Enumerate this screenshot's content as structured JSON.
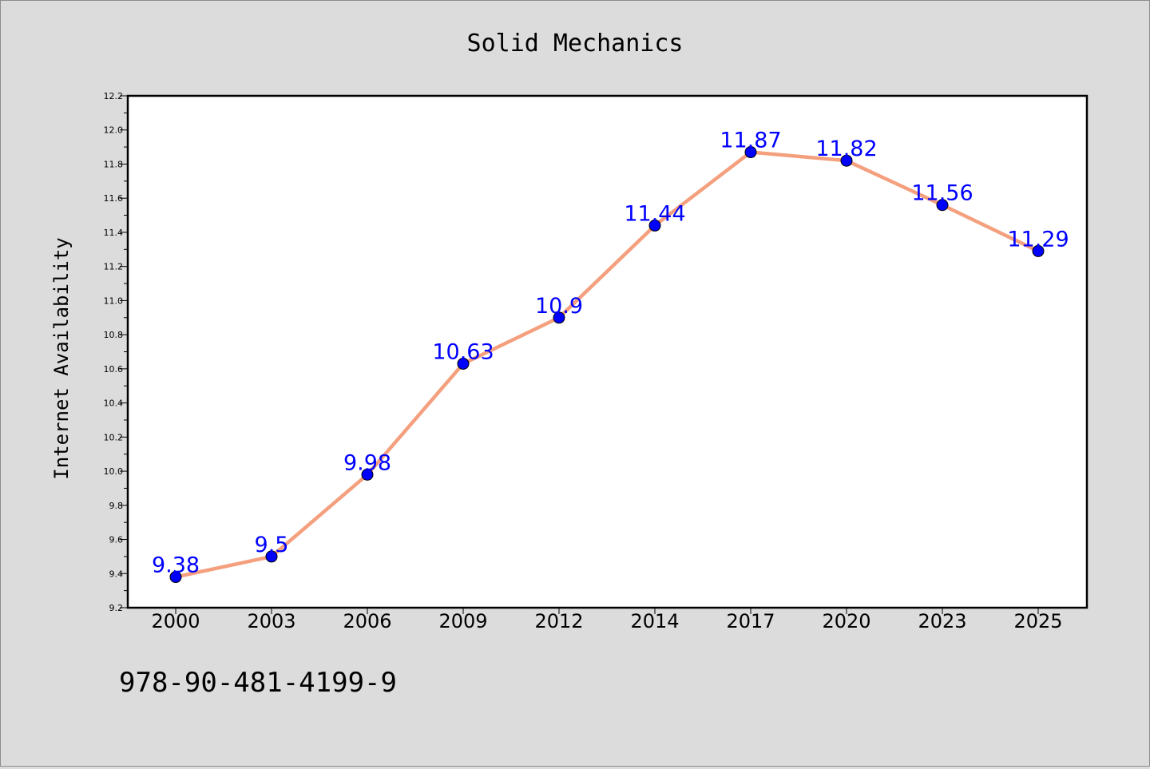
{
  "chart_data": {
    "type": "line",
    "title": "Solid Mechanics",
    "xlabel": "",
    "ylabel": "Internet Availability",
    "categories": [
      "2000",
      "2003",
      "2006",
      "2009",
      "2012",
      "2014",
      "2017",
      "2020",
      "2023",
      "2025"
    ],
    "series": [
      {
        "values": [
          9.38,
          9.5,
          9.98,
          10.63,
          10.9,
          11.44,
          11.87,
          11.82,
          11.56,
          11.29
        ],
        "labels": [
          "9.38",
          "9.5",
          "9.98",
          "10.63",
          "10.9",
          "11.44",
          "11.87",
          "11.82",
          "11.56",
          "11.29"
        ],
        "line_color": "#f4a07e",
        "marker_color": "#0000ff",
        "label_color": "#0000ff"
      }
    ],
    "ylim": [
      9.2,
      12.2
    ],
    "yticks": [
      "9.2",
      "9.4",
      "9.6",
      "9.8",
      "10.0",
      "10.2",
      "10.4",
      "10.6",
      "10.8",
      "11.0",
      "11.2",
      "11.4",
      "11.6",
      "11.8",
      "12.0",
      "12.2"
    ],
    "grid": false,
    "legend": "none"
  },
  "footer": {
    "isbn": "978-90-481-4199-9"
  },
  "colors": {
    "background": "#dcdcdc",
    "plot_area": "#ffffff"
  }
}
